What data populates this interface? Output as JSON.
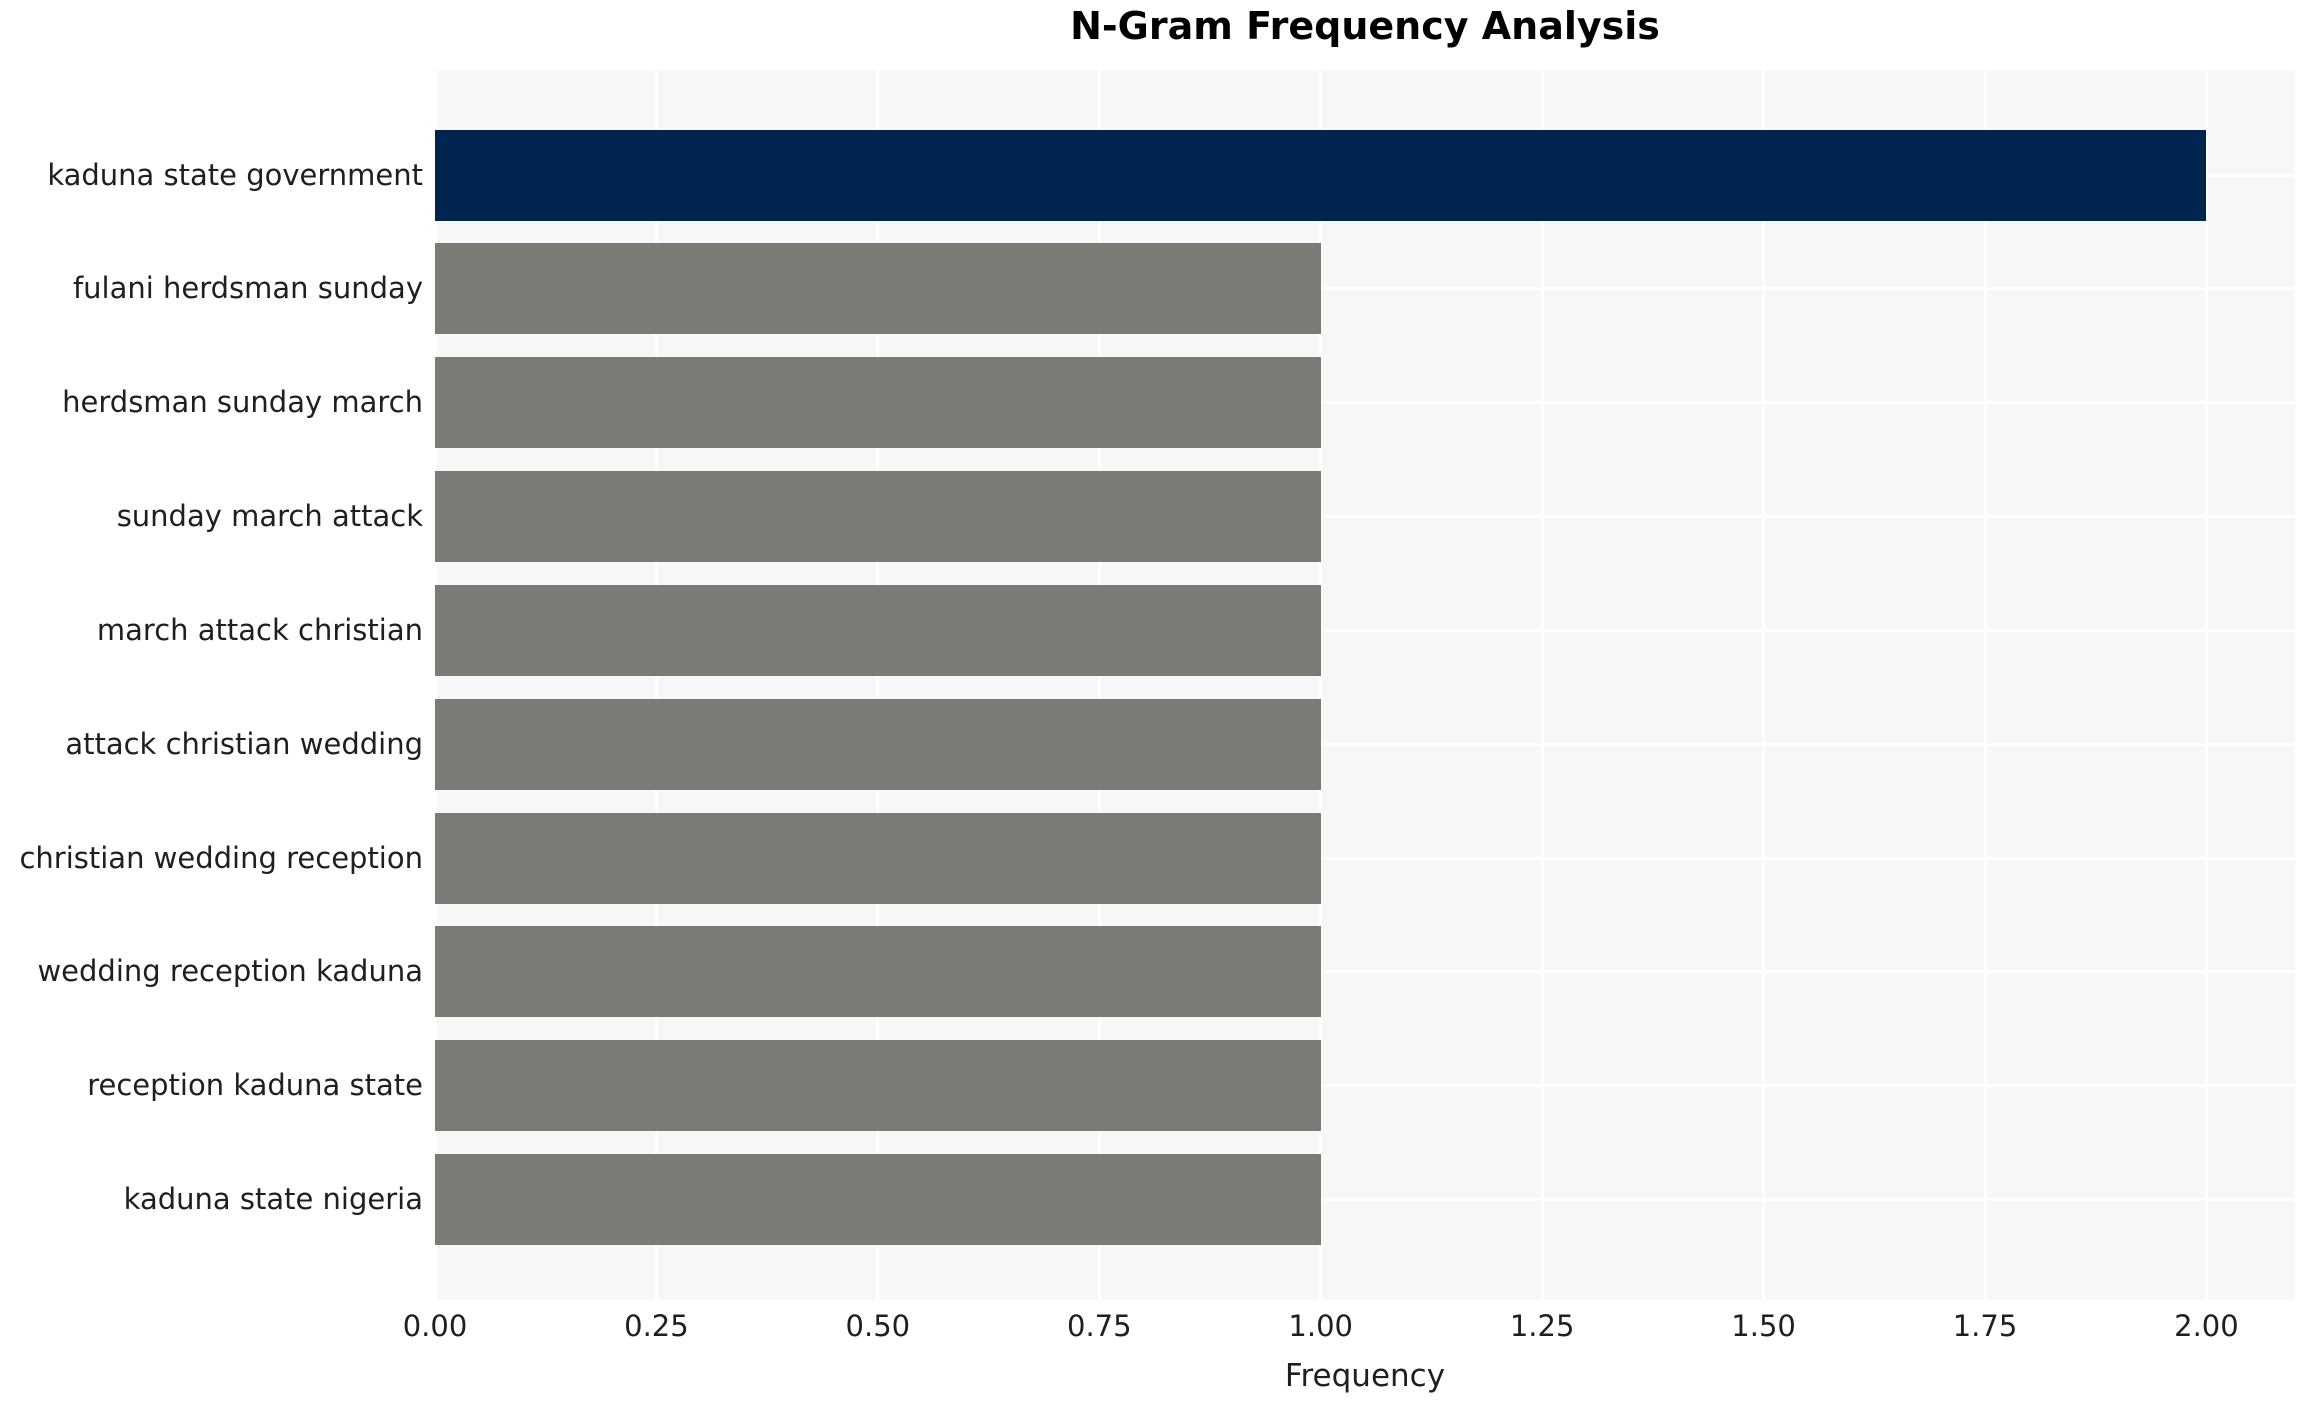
{
  "title": "N-Gram Frequency Analysis",
  "chart_data": {
    "type": "bar",
    "orientation": "horizontal",
    "title": "N-Gram Frequency Analysis",
    "xlabel": "Frequency",
    "ylabel": "",
    "categories": [
      "kaduna state government",
      "fulani herdsman sunday",
      "herdsman sunday march",
      "sunday march attack",
      "march attack christian",
      "attack christian wedding",
      "christian wedding reception",
      "wedding reception kaduna",
      "reception kaduna state",
      "kaduna state nigeria"
    ],
    "values": [
      2,
      1,
      1,
      1,
      1,
      1,
      1,
      1,
      1,
      1
    ],
    "xticks": [
      {
        "value": 0.0,
        "label": "0.00"
      },
      {
        "value": 0.25,
        "label": "0.25"
      },
      {
        "value": 0.5,
        "label": "0.50"
      },
      {
        "value": 0.75,
        "label": "0.75"
      },
      {
        "value": 1.0,
        "label": "1.00"
      },
      {
        "value": 1.25,
        "label": "1.25"
      },
      {
        "value": 1.5,
        "label": "1.50"
      },
      {
        "value": 1.75,
        "label": "1.75"
      },
      {
        "value": 2.0,
        "label": "2.00"
      }
    ],
    "xlim": [
      0,
      2.1
    ],
    "grid": true,
    "legend": false,
    "colors": {
      "highlight_bar": "#02254F",
      "default_bar": "#7B7B76",
      "highlight_index": 0,
      "plot_background": "#F7F7F7",
      "gridline": "#FFFFFF",
      "tick_text": "#1F1F1F",
      "title_text": "#000000"
    }
  }
}
